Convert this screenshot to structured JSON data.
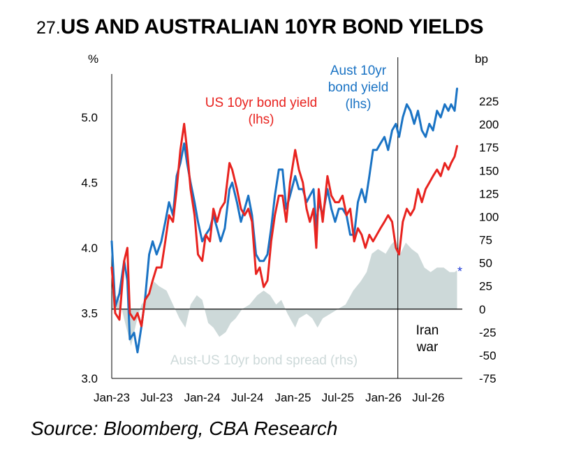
{
  "title": {
    "number": "27.",
    "text": "US AND AUSTRALIAN 10YR BOND YIELDS"
  },
  "source": "Source:  Bloomberg, CBA Research",
  "chart_data": {
    "type": "line",
    "left_axis": {
      "unit_label": "%",
      "min": 3.0,
      "max": 5.3,
      "ticks": [
        "3.0",
        "3.5",
        "4.0",
        "4.5",
        "5.0"
      ],
      "tick_values": [
        3.0,
        3.5,
        4.0,
        4.5,
        5.0
      ]
    },
    "right_axis": {
      "unit_label": "bp",
      "min": -75,
      "max": 250,
      "ticks": [
        "-75",
        "-50",
        "-25",
        "0",
        "25",
        "50",
        "75",
        "100",
        "125",
        "150",
        "175",
        "200",
        "225"
      ],
      "tick_values": [
        -75,
        -50,
        -25,
        0,
        25,
        50,
        75,
        100,
        125,
        150,
        175,
        200,
        225
      ]
    },
    "x_axis": {
      "type": "date",
      "min": "2023-01-01",
      "max": "2026-11-15",
      "ticks": [
        {
          "label": "Jan-23",
          "date": "2023-01-01"
        },
        {
          "label": "Jul-23",
          "date": "2023-07-01"
        },
        {
          "label": "Jan-24",
          "date": "2024-01-01"
        },
        {
          "label": "Jul-24",
          "date": "2024-07-01"
        },
        {
          "label": "Jan-25",
          "date": "2025-01-01"
        },
        {
          "label": "Jul-25",
          "date": "2025-07-01"
        },
        {
          "label": "Jan-26",
          "date": "2026-01-01"
        },
        {
          "label": "Jul-26",
          "date": "2026-07-01"
        }
      ]
    },
    "grid": false,
    "colors": {
      "aus": "#1a73c4",
      "us": "#e8231f",
      "spread": "#cdd9d9",
      "axis": "#000000",
      "asterisk": "#1f3bd6"
    },
    "series": [
      {
        "key": "aus",
        "name": "Aust 10yr bond yield (lhs)",
        "axis": "left",
        "label_lines": [
          "Aust 10yr",
          "bond yield",
          "(lhs)"
        ],
        "points": [
          [
            "2023-01-01",
            4.05
          ],
          [
            "2023-01-15",
            3.55
          ],
          [
            "2023-02-01",
            3.65
          ],
          [
            "2023-02-20",
            3.9
          ],
          [
            "2023-03-05",
            3.75
          ],
          [
            "2023-03-15",
            3.3
          ],
          [
            "2023-04-01",
            3.35
          ],
          [
            "2023-04-15",
            3.2
          ],
          [
            "2023-05-01",
            3.4
          ],
          [
            "2023-05-15",
            3.6
          ],
          [
            "2023-06-01",
            3.95
          ],
          [
            "2023-06-15",
            4.05
          ],
          [
            "2023-07-01",
            3.95
          ],
          [
            "2023-07-20",
            4.05
          ],
          [
            "2023-08-05",
            4.2
          ],
          [
            "2023-08-20",
            4.35
          ],
          [
            "2023-09-05",
            4.25
          ],
          [
            "2023-09-20",
            4.55
          ],
          [
            "2023-10-05",
            4.65
          ],
          [
            "2023-10-20",
            4.8
          ],
          [
            "2023-11-01",
            4.65
          ],
          [
            "2023-11-15",
            4.5
          ],
          [
            "2023-12-01",
            4.35
          ],
          [
            "2023-12-15",
            4.2
          ],
          [
            "2024-01-01",
            4.05
          ],
          [
            "2024-01-15",
            4.1
          ],
          [
            "2024-02-01",
            4.15
          ],
          [
            "2024-02-15",
            4.25
          ],
          [
            "2024-03-01",
            4.15
          ],
          [
            "2024-03-15",
            4.05
          ],
          [
            "2024-04-01",
            4.15
          ],
          [
            "2024-04-20",
            4.45
          ],
          [
            "2024-05-01",
            4.5
          ],
          [
            "2024-05-20",
            4.35
          ],
          [
            "2024-06-05",
            4.2
          ],
          [
            "2024-06-20",
            4.3
          ],
          [
            "2024-07-05",
            4.4
          ],
          [
            "2024-07-20",
            4.25
          ],
          [
            "2024-08-05",
            3.95
          ],
          [
            "2024-08-20",
            3.9
          ],
          [
            "2024-09-05",
            3.9
          ],
          [
            "2024-09-20",
            3.95
          ],
          [
            "2024-10-05",
            4.15
          ],
          [
            "2024-10-20",
            4.4
          ],
          [
            "2024-11-05",
            4.6
          ],
          [
            "2024-11-20",
            4.6
          ],
          [
            "2024-12-05",
            4.3
          ],
          [
            "2024-12-20",
            4.4
          ],
          [
            "2025-01-10",
            4.55
          ],
          [
            "2025-01-25",
            4.45
          ],
          [
            "2025-02-10",
            4.45
          ],
          [
            "2025-02-25",
            4.35
          ],
          [
            "2025-03-10",
            4.4
          ],
          [
            "2025-03-25",
            4.45
          ],
          [
            "2025-04-05",
            4.15
          ],
          [
            "2025-04-15",
            4.35
          ],
          [
            "2025-05-01",
            4.25
          ],
          [
            "2025-05-20",
            4.45
          ],
          [
            "2025-06-05",
            4.3
          ],
          [
            "2025-06-20",
            4.2
          ],
          [
            "2025-07-05",
            4.3
          ],
          [
            "2025-07-20",
            4.3
          ],
          [
            "2025-08-05",
            4.25
          ],
          [
            "2025-08-20",
            4.1
          ],
          [
            "2025-09-05",
            4.1
          ],
          [
            "2025-09-20",
            4.35
          ],
          [
            "2025-10-05",
            4.45
          ],
          [
            "2025-10-20",
            4.35
          ],
          [
            "2025-11-05",
            4.55
          ],
          [
            "2025-11-20",
            4.75
          ],
          [
            "2025-12-05",
            4.75
          ],
          [
            "2025-12-20",
            4.8
          ],
          [
            "2026-01-05",
            4.85
          ],
          [
            "2026-01-20",
            4.75
          ],
          [
            "2026-02-05",
            4.9
          ],
          [
            "2026-02-20",
            4.95
          ],
          [
            "2026-03-05",
            4.85
          ],
          [
            "2026-03-20",
            5.0
          ],
          [
            "2026-04-05",
            5.1
          ],
          [
            "2026-04-20",
            5.05
          ],
          [
            "2026-05-05",
            4.95
          ],
          [
            "2026-05-20",
            5.05
          ],
          [
            "2026-06-05",
            4.9
          ],
          [
            "2026-06-20",
            4.85
          ],
          [
            "2026-07-05",
            4.95
          ],
          [
            "2026-07-20",
            4.9
          ],
          [
            "2026-08-05",
            5.05
          ],
          [
            "2026-08-20",
            5.0
          ],
          [
            "2026-09-05",
            5.1
          ],
          [
            "2026-09-20",
            5.05
          ],
          [
            "2026-10-01",
            5.1
          ],
          [
            "2026-10-15",
            5.05
          ],
          [
            "2026-10-25",
            5.22
          ]
        ]
      },
      {
        "key": "us",
        "name": "US 10yr bond yield (lhs)",
        "axis": "left",
        "label_lines": [
          "US 10yr bond yield",
          "(lhs)"
        ],
        "points": [
          [
            "2023-01-01",
            3.85
          ],
          [
            "2023-01-15",
            3.5
          ],
          [
            "2023-02-01",
            3.45
          ],
          [
            "2023-02-20",
            3.9
          ],
          [
            "2023-03-05",
            4.0
          ],
          [
            "2023-03-15",
            3.5
          ],
          [
            "2023-04-01",
            3.45
          ],
          [
            "2023-04-15",
            3.5
          ],
          [
            "2023-05-01",
            3.4
          ],
          [
            "2023-05-15",
            3.6
          ],
          [
            "2023-06-01",
            3.65
          ],
          [
            "2023-06-15",
            3.75
          ],
          [
            "2023-07-01",
            3.85
          ],
          [
            "2023-07-20",
            3.85
          ],
          [
            "2023-08-05",
            4.05
          ],
          [
            "2023-08-20",
            4.25
          ],
          [
            "2023-09-05",
            4.2
          ],
          [
            "2023-09-20",
            4.45
          ],
          [
            "2023-10-05",
            4.75
          ],
          [
            "2023-10-20",
            4.95
          ],
          [
            "2023-11-01",
            4.75
          ],
          [
            "2023-11-15",
            4.45
          ],
          [
            "2023-12-01",
            4.25
          ],
          [
            "2023-12-15",
            3.95
          ],
          [
            "2024-01-01",
            3.9
          ],
          [
            "2024-01-15",
            4.1
          ],
          [
            "2024-02-01",
            4.05
          ],
          [
            "2024-02-15",
            4.3
          ],
          [
            "2024-03-01",
            4.2
          ],
          [
            "2024-03-15",
            4.3
          ],
          [
            "2024-04-01",
            4.35
          ],
          [
            "2024-04-20",
            4.65
          ],
          [
            "2024-05-01",
            4.6
          ],
          [
            "2024-05-20",
            4.45
          ],
          [
            "2024-06-05",
            4.3
          ],
          [
            "2024-06-20",
            4.25
          ],
          [
            "2024-07-05",
            4.3
          ],
          [
            "2024-07-20",
            4.2
          ],
          [
            "2024-08-05",
            3.8
          ],
          [
            "2024-08-20",
            3.85
          ],
          [
            "2024-09-05",
            3.7
          ],
          [
            "2024-09-20",
            3.75
          ],
          [
            "2024-10-05",
            4.05
          ],
          [
            "2024-10-20",
            4.25
          ],
          [
            "2024-11-05",
            4.4
          ],
          [
            "2024-11-20",
            4.4
          ],
          [
            "2024-12-05",
            4.2
          ],
          [
            "2024-12-20",
            4.5
          ],
          [
            "2025-01-10",
            4.75
          ],
          [
            "2025-01-25",
            4.6
          ],
          [
            "2025-02-10",
            4.5
          ],
          [
            "2025-02-25",
            4.3
          ],
          [
            "2025-03-10",
            4.2
          ],
          [
            "2025-03-25",
            4.3
          ],
          [
            "2025-04-05",
            4.0
          ],
          [
            "2025-04-15",
            4.45
          ],
          [
            "2025-05-01",
            4.2
          ],
          [
            "2025-05-20",
            4.55
          ],
          [
            "2025-06-05",
            4.4
          ],
          [
            "2025-06-20",
            4.35
          ],
          [
            "2025-07-05",
            4.35
          ],
          [
            "2025-07-20",
            4.4
          ],
          [
            "2025-08-05",
            4.25
          ],
          [
            "2025-08-20",
            4.3
          ],
          [
            "2025-09-05",
            4.05
          ],
          [
            "2025-09-20",
            4.15
          ],
          [
            "2025-10-05",
            4.1
          ],
          [
            "2025-10-20",
            4.0
          ],
          [
            "2025-11-05",
            4.1
          ],
          [
            "2025-11-20",
            4.05
          ],
          [
            "2025-12-05",
            4.1
          ],
          [
            "2025-12-20",
            4.15
          ],
          [
            "2026-01-05",
            4.2
          ],
          [
            "2026-01-20",
            4.25
          ],
          [
            "2026-02-05",
            4.2
          ],
          [
            "2026-02-20",
            4.0
          ],
          [
            "2026-03-05",
            3.95
          ],
          [
            "2026-03-20",
            4.2
          ],
          [
            "2026-04-05",
            4.3
          ],
          [
            "2026-04-20",
            4.25
          ],
          [
            "2026-05-05",
            4.3
          ],
          [
            "2026-05-20",
            4.45
          ],
          [
            "2026-06-05",
            4.35
          ],
          [
            "2026-06-20",
            4.45
          ],
          [
            "2026-07-05",
            4.5
          ],
          [
            "2026-07-20",
            4.55
          ],
          [
            "2026-08-05",
            4.6
          ],
          [
            "2026-08-20",
            4.55
          ],
          [
            "2026-09-05",
            4.65
          ],
          [
            "2026-09-20",
            4.6
          ],
          [
            "2026-10-01",
            4.65
          ],
          [
            "2026-10-15",
            4.7
          ],
          [
            "2026-10-25",
            4.78
          ]
        ]
      },
      {
        "key": "spread",
        "name": "Aust-US 10yr bond spread (rhs)",
        "axis": "right",
        "style": "area",
        "points": [
          [
            "2023-01-01",
            20
          ],
          [
            "2023-02-01",
            10
          ],
          [
            "2023-03-01",
            -20
          ],
          [
            "2023-03-20",
            -40
          ],
          [
            "2023-04-10",
            -15
          ],
          [
            "2023-05-01",
            5
          ],
          [
            "2023-06-01",
            15
          ],
          [
            "2023-06-20",
            30
          ],
          [
            "2023-07-10",
            25
          ],
          [
            "2023-08-10",
            20
          ],
          [
            "2023-09-05",
            5
          ],
          [
            "2023-10-01",
            -10
          ],
          [
            "2023-10-25",
            -20
          ],
          [
            "2023-11-15",
            5
          ],
          [
            "2023-12-10",
            15
          ],
          [
            "2024-01-01",
            10
          ],
          [
            "2024-01-25",
            -15
          ],
          [
            "2024-02-15",
            -20
          ],
          [
            "2024-03-10",
            -30
          ],
          [
            "2024-04-05",
            -25
          ],
          [
            "2024-04-25",
            -15
          ],
          [
            "2024-05-15",
            -10
          ],
          [
            "2024-06-10",
            0
          ],
          [
            "2024-07-10",
            5
          ],
          [
            "2024-08-10",
            15
          ],
          [
            "2024-09-05",
            20
          ],
          [
            "2024-10-01",
            15
          ],
          [
            "2024-10-25",
            5
          ],
          [
            "2024-11-15",
            10
          ],
          [
            "2024-12-10",
            -5
          ],
          [
            "2025-01-10",
            -20
          ],
          [
            "2025-01-25",
            -10
          ],
          [
            "2025-02-25",
            -5
          ],
          [
            "2025-03-20",
            -10
          ],
          [
            "2025-04-10",
            -20
          ],
          [
            "2025-05-01",
            -10
          ],
          [
            "2025-06-01",
            -5
          ],
          [
            "2025-07-01",
            0
          ],
          [
            "2025-08-01",
            5
          ],
          [
            "2025-09-01",
            20
          ],
          [
            "2025-10-01",
            30
          ],
          [
            "2025-10-25",
            40
          ],
          [
            "2025-11-15",
            60
          ],
          [
            "2025-12-10",
            65
          ],
          [
            "2026-01-10",
            60
          ],
          [
            "2026-02-01",
            70
          ],
          [
            "2026-02-20",
            75
          ],
          [
            "2026-03-10",
            60
          ],
          [
            "2026-04-01",
            72
          ],
          [
            "2026-04-25",
            65
          ],
          [
            "2026-05-20",
            60
          ],
          [
            "2026-06-15",
            45
          ],
          [
            "2026-07-10",
            40
          ],
          [
            "2026-08-05",
            45
          ],
          [
            "2026-09-01",
            45
          ],
          [
            "2026-09-25",
            40
          ],
          [
            "2026-10-15",
            40
          ],
          [
            "2026-10-25",
            42
          ]
        ]
      }
    ],
    "annotations": [
      {
        "text_lines": [
          "Iran",
          "war"
        ],
        "date": "2026-02-28",
        "style": "vertical-line"
      },
      {
        "text": "*",
        "date": "2026-11-05",
        "axis": "right",
        "value": 42
      }
    ]
  }
}
